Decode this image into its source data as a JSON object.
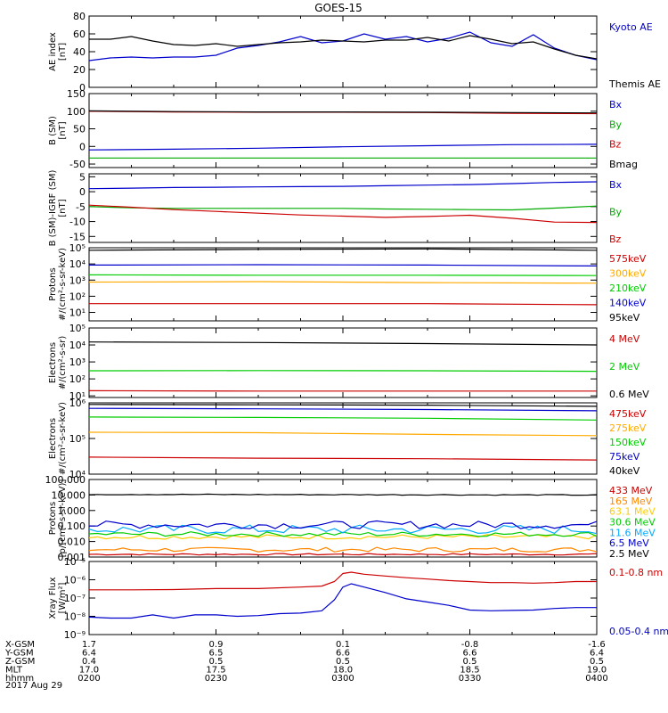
{
  "title": "GOES-15",
  "date_label": "2017 Aug 29",
  "x_time": {
    "start": 0,
    "end": 120
  },
  "x_tick_rows": [
    {
      "label": "X-GSM",
      "values": [
        "1.7",
        "0.9",
        "0.1",
        "-0.8",
        "-1.6"
      ]
    },
    {
      "label": "Y-GSM",
      "values": [
        "6.4",
        "6.5",
        "6.6",
        "6.6",
        "6.4"
      ]
    },
    {
      "label": "Z-GSM",
      "values": [
        "0.4",
        "0.5",
        "0.5",
        "0.5",
        "0.5"
      ]
    },
    {
      "label": "MLT",
      "values": [
        "17.0",
        "17.5",
        "18.0",
        "18.5",
        "19.0"
      ]
    },
    {
      "label": "hhmm",
      "values": [
        "0200",
        "0230",
        "0300",
        "0330",
        "0400"
      ]
    }
  ],
  "chart_data": [
    {
      "type": "line",
      "id": "ae",
      "ylabel": [
        "AE index",
        "[nT]"
      ],
      "scale": "linear",
      "ylim": [
        0,
        80
      ],
      "yticks": [
        0,
        20,
        40,
        60,
        80
      ],
      "series": [
        {
          "name": "Kyoto AE",
          "color": "#0000cc",
          "x": [
            0,
            5,
            10,
            15,
            20,
            25,
            30,
            35,
            40,
            45,
            50,
            55,
            60,
            65,
            70,
            75,
            80,
            85,
            90,
            95,
            100,
            105,
            110,
            115,
            120
          ],
          "y": [
            30,
            33,
            34,
            33,
            34,
            34,
            36,
            44,
            47,
            51,
            57,
            50,
            52,
            60,
            54,
            57,
            51,
            55,
            62,
            50,
            46,
            59,
            44,
            36,
            31
          ]
        },
        {
          "name": "Themis AE",
          "color": "#000000",
          "x": [
            0,
            5,
            10,
            15,
            20,
            25,
            30,
            35,
            40,
            45,
            50,
            55,
            60,
            65,
            70,
            75,
            80,
            85,
            90,
            95,
            100,
            105,
            110,
            115,
            120
          ],
          "y": [
            54,
            54,
            57,
            52,
            48,
            47,
            49,
            46,
            48,
            50,
            51,
            53,
            52,
            51,
            53,
            53,
            56,
            52,
            58,
            54,
            49,
            51,
            43,
            36,
            32
          ]
        }
      ]
    },
    {
      "type": "line",
      "id": "b_sm",
      "ylabel": [
        "B (SM)",
        "[nT]"
      ],
      "scale": "linear",
      "ylim": [
        -60,
        150
      ],
      "yticks": [
        -50,
        0,
        50,
        100,
        150
      ],
      "series": [
        {
          "name": "Bx",
          "color": "#0000cc",
          "x": [
            0,
            20,
            40,
            60,
            80,
            100,
            120
          ],
          "y": [
            -10,
            -8,
            -5,
            -1,
            2,
            5,
            6
          ]
        },
        {
          "name": "By",
          "color": "#00aa00",
          "x": [
            0,
            20,
            40,
            60,
            80,
            100,
            120
          ],
          "y": [
            -33,
            -33,
            -33,
            -33,
            -33,
            -33,
            -33
          ]
        },
        {
          "name": "Bz",
          "color": "#cc0000",
          "x": [
            0,
            20,
            40,
            60,
            80,
            100,
            120
          ],
          "y": [
            100,
            98,
            97,
            97,
            96,
            94,
            93
          ]
        },
        {
          "name": "Bmag",
          "color": "#000000",
          "x": [
            0,
            20,
            40,
            60,
            80,
            100,
            120
          ],
          "y": [
            101,
            99,
            98,
            98,
            97,
            96,
            95
          ]
        }
      ]
    },
    {
      "type": "line",
      "id": "b_igrf",
      "ylabel": [
        "B (SM)-IGRF (SM)",
        "[nT]"
      ],
      "scale": "linear",
      "ylim": [
        -17,
        6
      ],
      "yticks": [
        -15,
        -10,
        -5,
        0,
        5
      ],
      "series": [
        {
          "name": "Bx",
          "color": "#0000cc",
          "x": [
            0,
            10,
            20,
            30,
            40,
            50,
            60,
            70,
            80,
            90,
            100,
            110,
            120
          ],
          "y": [
            1,
            1.2,
            1.4,
            1.5,
            1.6,
            1.7,
            1.8,
            2,
            2.2,
            2.4,
            2.7,
            3.1,
            3.3
          ]
        },
        {
          "name": "By",
          "color": "#00aa00",
          "x": [
            0,
            10,
            20,
            30,
            40,
            50,
            60,
            70,
            80,
            90,
            100,
            110,
            120
          ],
          "y": [
            -5,
            -5.4,
            -5.6,
            -5.6,
            -5.6,
            -5.6,
            -5.6,
            -5.8,
            -5.9,
            -6,
            -6.1,
            -5.5,
            -4.8
          ]
        },
        {
          "name": "Bz",
          "color": "#cc0000",
          "x": [
            0,
            10,
            20,
            30,
            40,
            50,
            60,
            70,
            80,
            90,
            100,
            110,
            120
          ],
          "y": [
            -4.5,
            -5.2,
            -6,
            -6.6,
            -7.2,
            -7.8,
            -8.2,
            -8.6,
            -8.3,
            -7.9,
            -8.9,
            -10.2,
            -10.3
          ]
        }
      ]
    },
    {
      "type": "line",
      "id": "protons1",
      "ylabel": [
        "Protons",
        "#/(cm²-s-sr-keV)"
      ],
      "scale": "log",
      "ylim": [
        3,
        100000
      ],
      "yticks": [
        10,
        100,
        1000,
        10000,
        100000
      ],
      "ytick_labels": [
        "10¹",
        "10²",
        "10³",
        "10⁴",
        "10⁵"
      ],
      "series": [
        {
          "name": "575keV",
          "color": "#cc0000",
          "x": [
            0,
            40,
            80,
            120
          ],
          "y": [
            35,
            35,
            35,
            30
          ]
        },
        {
          "name": "300keV",
          "color": "#ffaa00",
          "x": [
            0,
            40,
            80,
            120
          ],
          "y": [
            750,
            800,
            700,
            650
          ]
        },
        {
          "name": "210keV",
          "color": "#00cc00",
          "x": [
            0,
            40,
            80,
            120
          ],
          "y": [
            2100,
            2000,
            2000,
            1900
          ]
        },
        {
          "name": "140keV",
          "color": "#0000cc",
          "x": [
            0,
            40,
            80,
            120
          ],
          "y": [
            8500,
            9000,
            8500,
            7500
          ]
        },
        {
          "name": "95keV",
          "color": "#000000",
          "x": [
            0,
            40,
            80,
            120
          ],
          "y": [
            70000,
            80000,
            85000,
            70000
          ]
        }
      ]
    },
    {
      "type": "line",
      "id": "electrons1",
      "ylabel": [
        "Electrons",
        "#/(cm²-s-sr)"
      ],
      "scale": "log",
      "ylim": [
        8,
        100000
      ],
      "yticks": [
        10,
        100,
        1000,
        10000,
        100000
      ],
      "ytick_labels": [
        "10¹",
        "10²",
        "10³",
        "10⁴",
        "10⁵"
      ],
      "series": [
        {
          "name": "4 MeV",
          "color": "#cc0000",
          "x": [
            0,
            40,
            80,
            120
          ],
          "y": [
            20,
            19,
            19,
            19
          ]
        },
        {
          "name": "2 MeV",
          "color": "#00cc00",
          "x": [
            0,
            40,
            80,
            120
          ],
          "y": [
            300,
            310,
            300,
            280
          ]
        },
        {
          "name": "0.6 MeV",
          "color": "#000000",
          "x": [
            0,
            40,
            80,
            120
          ],
          "y": [
            15000,
            14000,
            12000,
            10000
          ]
        }
      ]
    },
    {
      "type": "line",
      "id": "electrons2",
      "ylabel": [
        "Electrons",
        "#/(cm²-s-sr-keV)"
      ],
      "scale": "log",
      "ylim": [
        10000,
        1000000
      ],
      "yticks": [
        10000,
        100000,
        1000000
      ],
      "ytick_labels": [
        "10⁴",
        "10⁵",
        "10⁶"
      ],
      "series": [
        {
          "name": "475keV",
          "color": "#cc0000",
          "x": [
            0,
            40,
            80,
            120
          ],
          "y": [
            30000,
            28000,
            27000,
            25000
          ]
        },
        {
          "name": "275keV",
          "color": "#ffaa00",
          "x": [
            0,
            40,
            80,
            120
          ],
          "y": [
            150000,
            145000,
            130000,
            120000
          ]
        },
        {
          "name": "150keV",
          "color": "#00cc00",
          "x": [
            0,
            40,
            80,
            120
          ],
          "y": [
            400000,
            390000,
            370000,
            330000
          ]
        },
        {
          "name": "75keV",
          "color": "#0000cc",
          "x": [
            0,
            40,
            80,
            120
          ],
          "y": [
            700000,
            680000,
            650000,
            600000
          ]
        },
        {
          "name": "40keV",
          "color": "#000000",
          "x": [
            0,
            40,
            80,
            120
          ],
          "y": [
            900000,
            880000,
            860000,
            800000
          ]
        }
      ]
    },
    {
      "type": "line",
      "id": "protons2",
      "ylabel": [
        "Protons",
        "[p/(cm²-s-sr-keV)]"
      ],
      "scale": "log",
      "ylim": [
        0.001,
        100
      ],
      "yticks": [
        0.001,
        0.01,
        0.1,
        1,
        10,
        100
      ],
      "ytick_labels": [
        "0.001",
        "0.010",
        "0.100",
        "1.000",
        "10.000",
        "100.000"
      ],
      "series": [
        {
          "name": "433 MeV",
          "color": "#cc0000",
          "x": [
            0,
            120
          ],
          "y": [
            0.0015,
            0.0015
          ],
          "noise": 0.05
        },
        {
          "name": "165 MeV",
          "color": "#ff8800",
          "x": [
            0,
            120
          ],
          "y": [
            0.003,
            0.003
          ],
          "noise": 0.15
        },
        {
          "name": "63.1 MeV",
          "color": "#ffcc00",
          "x": [
            0,
            120
          ],
          "y": [
            0.02,
            0.02
          ],
          "noise": 0.15
        },
        {
          "name": "30.6 MeV",
          "color": "#00cc00",
          "x": [
            0,
            120
          ],
          "y": [
            0.03,
            0.03
          ],
          "noise": 0.15
        },
        {
          "name": "11.6 MeV",
          "color": "#00aaff",
          "x": [
            0,
            120
          ],
          "y": [
            0.06,
            0.06
          ],
          "noise": 0.3
        },
        {
          "name": "6.5 MeV",
          "color": "#0000cc",
          "x": [
            0,
            120
          ],
          "y": [
            0.12,
            0.12
          ],
          "noise": 0.25
        },
        {
          "name": "2.5 MeV",
          "color": "#000000",
          "x": [
            0,
            120
          ],
          "y": [
            11,
            10
          ],
          "noise": 0.03
        }
      ]
    },
    {
      "type": "line",
      "id": "xray",
      "ylabel": [
        "Xray Flux",
        "[W/m²]"
      ],
      "scale": "log",
      "ylim": [
        1e-09,
        1e-05
      ],
      "yticks": [
        1e-09,
        1e-08,
        1e-07,
        1e-06,
        1e-05
      ],
      "ytick_labels": [
        "10⁻⁹",
        "10⁻⁸",
        "10⁻⁷",
        "10⁻⁶",
        "10⁻⁵"
      ],
      "series": [
        {
          "name": "0.1-0.8 nm",
          "color": "#cc0000",
          "x": [
            0,
            10,
            20,
            30,
            40,
            50,
            55,
            58,
            60,
            62,
            65,
            70,
            75,
            80,
            85,
            90,
            95,
            100,
            105,
            110,
            115,
            120
          ],
          "y": [
            2.8e-07,
            2.8e-07,
            2.9e-07,
            3.3e-07,
            3.3e-07,
            4e-07,
            4.5e-07,
            8e-07,
            2.2e-06,
            2.6e-06,
            2e-06,
            1.6e-06,
            1.3e-06,
            1.1e-06,
            9e-07,
            8e-07,
            7e-07,
            7e-07,
            6.5e-07,
            7e-07,
            8e-07,
            8e-07
          ]
        },
        {
          "name": "0.05-0.4 nm",
          "color": "#0000cc",
          "x": [
            0,
            5,
            10,
            15,
            20,
            25,
            30,
            35,
            40,
            45,
            50,
            55,
            58,
            60,
            62,
            65,
            70,
            75,
            80,
            85,
            90,
            95,
            100,
            105,
            110,
            115,
            120
          ],
          "y": [
            9e-09,
            8e-09,
            8e-09,
            1.2e-08,
            8e-09,
            1.2e-08,
            1.2e-08,
            1e-08,
            1.1e-08,
            1.4e-08,
            1.5e-08,
            2e-08,
            8e-08,
            4e-07,
            6e-07,
            4e-07,
            2e-07,
            9e-08,
            6e-08,
            4e-08,
            2.2e-08,
            2e-08,
            2.1e-08,
            2.2e-08,
            2.7e-08,
            3e-08,
            3e-08
          ]
        }
      ]
    }
  ]
}
